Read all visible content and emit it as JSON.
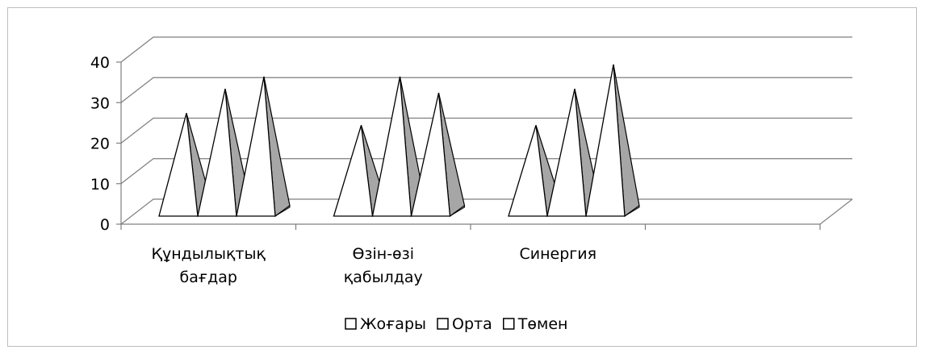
{
  "chart_data": {
    "type": "bar",
    "style": "3d-pyramid",
    "categories": [
      [
        "Құндылықтық",
        "бағдар"
      ],
      [
        "Өзін-өзі",
        "қабылдау"
      ],
      [
        "Синергия"
      ]
    ],
    "series": [
      {
        "name": "Жоғары",
        "values": [
          29,
          26,
          26
        ]
      },
      {
        "name": "Орта",
        "values": [
          35,
          38,
          35
        ]
      },
      {
        "name": "Төмен",
        "values": [
          38,
          34,
          41
        ]
      }
    ],
    "y_ticks": [
      "0",
      "10",
      "20",
      "30",
      "40"
    ],
    "ylim": [
      0,
      40
    ],
    "grid": true,
    "legend_position": "bottom",
    "colors": {
      "front": "#ffffff",
      "side": "#a6a6a6",
      "stroke": "#000000",
      "grid": "#7f7f7f",
      "frame": "#bdbdbd"
    }
  }
}
